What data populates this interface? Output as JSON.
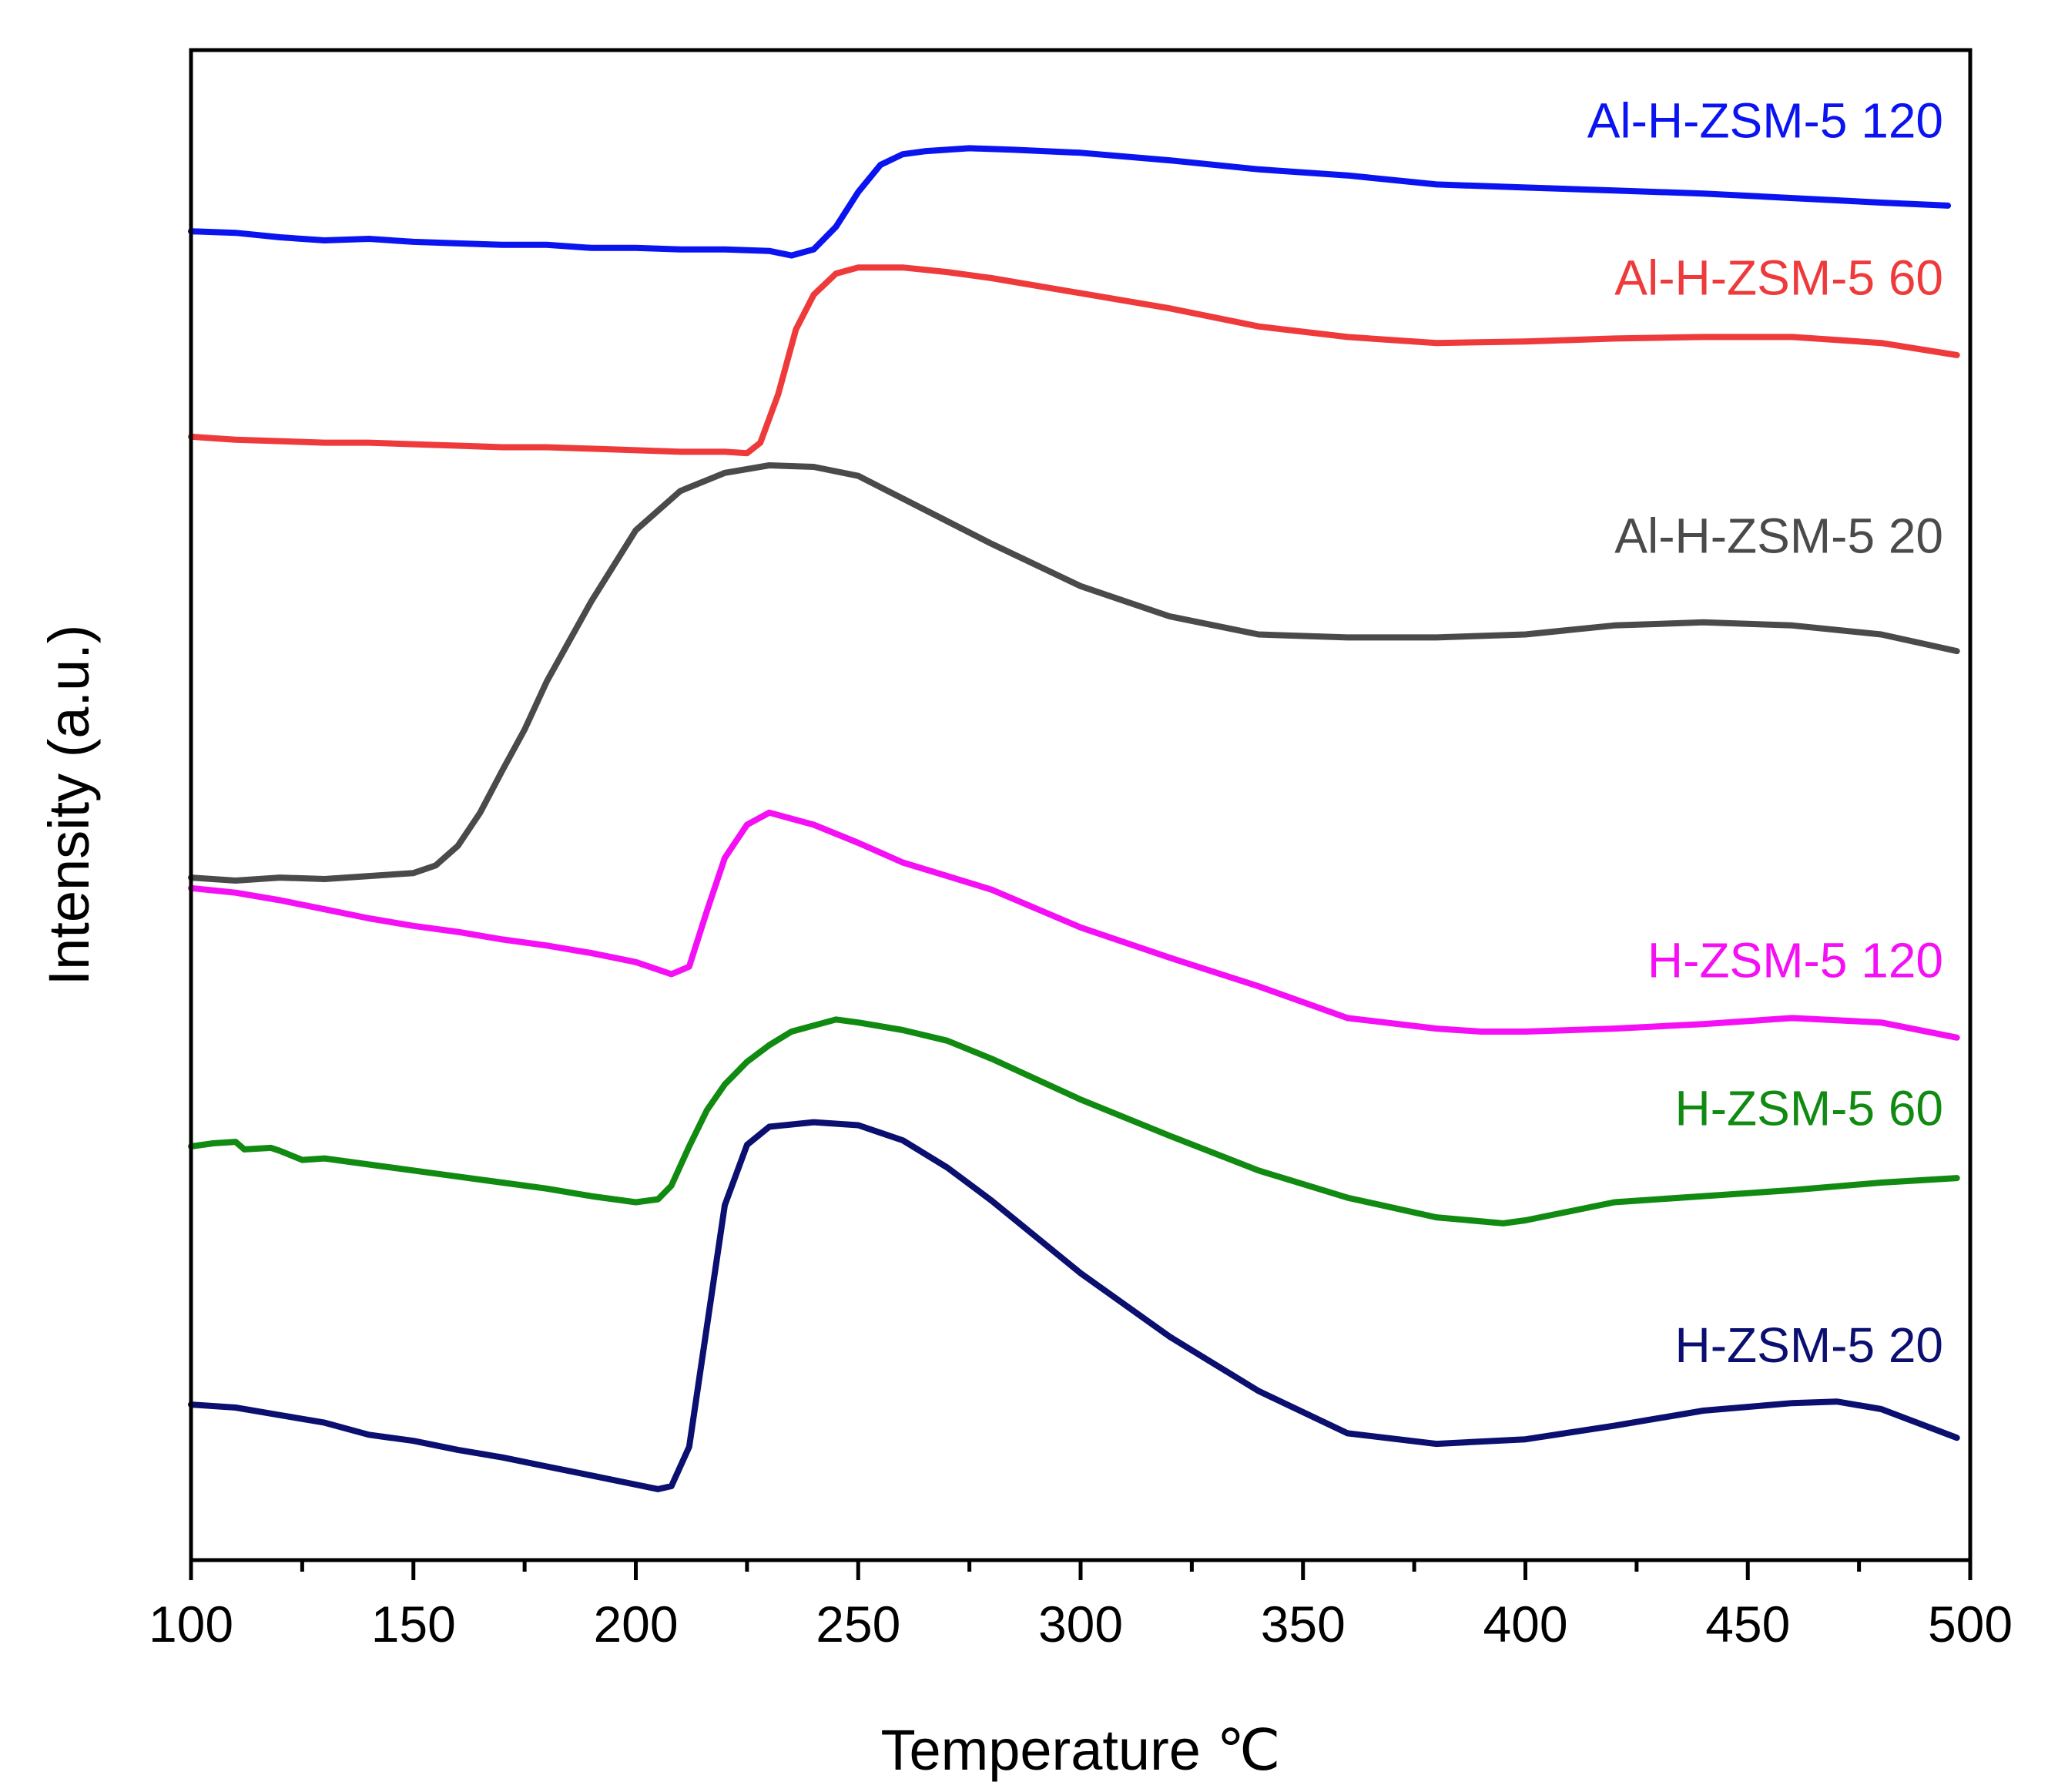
{
  "chart_data": {
    "type": "line",
    "title": "",
    "xlabel": "Temperature ℃",
    "ylabel": "Intensity (a.u.)",
    "xlim": [
      100,
      500
    ],
    "ylim": [
      0,
      100
    ],
    "xticks": [
      100,
      150,
      200,
      250,
      300,
      350,
      400,
      450,
      500
    ],
    "xtick_labels": [
      "100",
      "150",
      "200",
      "250",
      "300",
      "350",
      "400",
      "450",
      "500"
    ],
    "yticks": [],
    "grid": false,
    "legend_placement": "inline-right",
    "series": [
      {
        "name": "Al-H-ZSM-5 120",
        "color": "#0a14f0",
        "x": [
          100,
          110,
          120,
          130,
          140,
          150,
          160,
          170,
          180,
          190,
          200,
          210,
          220,
          230,
          235,
          240,
          245,
          250,
          255,
          260,
          265,
          275,
          285,
          300,
          320,
          340,
          360,
          380,
          400,
          420,
          440,
          460,
          480,
          495
        ],
        "y": [
          88.0,
          87.9,
          87.6,
          87.4,
          87.5,
          87.3,
          87.2,
          87.1,
          87.1,
          86.9,
          86.9,
          86.8,
          86.8,
          86.7,
          86.4,
          86.8,
          88.3,
          90.6,
          92.4,
          93.1,
          93.3,
          93.5,
          93.4,
          93.2,
          92.7,
          92.1,
          91.7,
          91.1,
          90.9,
          90.7,
          90.5,
          90.2,
          89.9,
          89.7
        ]
      },
      {
        "name": "Al-H-ZSM-5 60",
        "color": "#ee3a3a",
        "x": [
          100,
          110,
          120,
          130,
          140,
          150,
          160,
          170,
          180,
          190,
          200,
          210,
          220,
          225,
          228,
          232,
          236,
          240,
          245,
          250,
          260,
          270,
          280,
          300,
          320,
          340,
          360,
          380,
          400,
          420,
          440,
          460,
          480,
          497
        ],
        "y": [
          74.4,
          74.2,
          74.1,
          74.0,
          74.0,
          73.9,
          73.8,
          73.7,
          73.7,
          73.6,
          73.5,
          73.4,
          73.4,
          73.3,
          74.0,
          77.2,
          81.5,
          83.8,
          85.2,
          85.6,
          85.6,
          85.3,
          84.9,
          83.9,
          82.9,
          81.7,
          81.0,
          80.6,
          80.7,
          80.9,
          81.0,
          81.0,
          80.6,
          79.8
        ]
      },
      {
        "name": "Al-H-ZSM-5 20",
        "color": "#4a4a4a",
        "x": [
          100,
          110,
          120,
          130,
          140,
          150,
          155,
          160,
          165,
          170,
          175,
          180,
          190,
          200,
          210,
          220,
          230,
          240,
          250,
          260,
          270,
          280,
          300,
          320,
          340,
          360,
          380,
          400,
          420,
          440,
          460,
          480,
          497
        ],
        "y": [
          45.2,
          45.0,
          45.2,
          45.1,
          45.3,
          45.5,
          46.0,
          47.3,
          49.5,
          52.3,
          55.0,
          58.2,
          63.5,
          68.2,
          70.8,
          72.0,
          72.5,
          72.4,
          71.8,
          70.3,
          68.8,
          67.3,
          64.5,
          62.5,
          61.3,
          61.1,
          61.1,
          61.3,
          61.9,
          62.1,
          61.9,
          61.3,
          60.2
        ]
      },
      {
        "name": "H-ZSM-5 120",
        "color": "#f50ff5",
        "x": [
          100,
          110,
          120,
          130,
          140,
          150,
          160,
          170,
          180,
          190,
          200,
          205,
          208,
          212,
          216,
          220,
          225,
          230,
          240,
          250,
          260,
          270,
          280,
          300,
          320,
          340,
          360,
          380,
          390,
          400,
          420,
          440,
          460,
          480,
          497
        ],
        "y": [
          44.5,
          44.2,
          43.7,
          43.1,
          42.5,
          42.0,
          41.6,
          41.1,
          40.7,
          40.2,
          39.6,
          39.1,
          38.8,
          39.3,
          43.0,
          46.5,
          48.7,
          49.5,
          48.7,
          47.5,
          46.2,
          45.3,
          44.4,
          41.9,
          39.9,
          38.0,
          35.9,
          35.2,
          35.0,
          35.0,
          35.2,
          35.5,
          35.9,
          35.6,
          34.6
        ]
      },
      {
        "name": "H-ZSM-5 60",
        "color": "#118a11",
        "x": [
          100,
          105,
          110,
          112,
          118,
          120,
          125,
          130,
          140,
          150,
          160,
          170,
          180,
          190,
          200,
          205,
          208,
          212,
          216,
          220,
          225,
          230,
          235,
          245,
          250,
          260,
          270,
          280,
          300,
          320,
          340,
          360,
          380,
          395,
          400,
          420,
          440,
          460,
          480,
          497
        ],
        "y": [
          27.4,
          27.6,
          27.7,
          27.2,
          27.3,
          27.1,
          26.5,
          26.6,
          26.2,
          25.8,
          25.4,
          25.0,
          24.6,
          24.1,
          23.7,
          23.9,
          24.8,
          27.4,
          29.8,
          31.5,
          33.0,
          34.1,
          35.0,
          35.8,
          35.6,
          35.1,
          34.4,
          33.2,
          30.5,
          28.1,
          25.8,
          24.0,
          22.7,
          22.3,
          22.5,
          23.7,
          24.1,
          24.5,
          25.0,
          25.3
        ]
      },
      {
        "name": "H-ZSM-5 20",
        "color": "#0a0f70",
        "x": [
          100,
          110,
          120,
          130,
          140,
          150,
          160,
          170,
          180,
          190,
          200,
          205,
          208,
          212,
          216,
          220,
          225,
          230,
          240,
          250,
          260,
          270,
          280,
          300,
          320,
          340,
          360,
          380,
          400,
          420,
          440,
          460,
          470,
          480,
          497
        ],
        "y": [
          10.3,
          10.1,
          9.6,
          9.1,
          8.3,
          7.9,
          7.3,
          6.8,
          6.2,
          5.6,
          5.0,
          4.7,
          4.9,
          7.5,
          15.5,
          23.5,
          27.5,
          28.7,
          29.0,
          28.8,
          27.8,
          26.0,
          23.8,
          19.0,
          14.8,
          11.2,
          8.4,
          7.7,
          8.0,
          8.9,
          9.9,
          10.4,
          10.5,
          10.0,
          8.1
        ]
      }
    ],
    "legend": [
      "Al-H-ZSM-5 120",
      "Al-H-ZSM-5 60",
      "Al-H-ZSM-5 20",
      "H-ZSM-5 120",
      "H-ZSM-5 60",
      "H-ZSM-5 20"
    ]
  }
}
